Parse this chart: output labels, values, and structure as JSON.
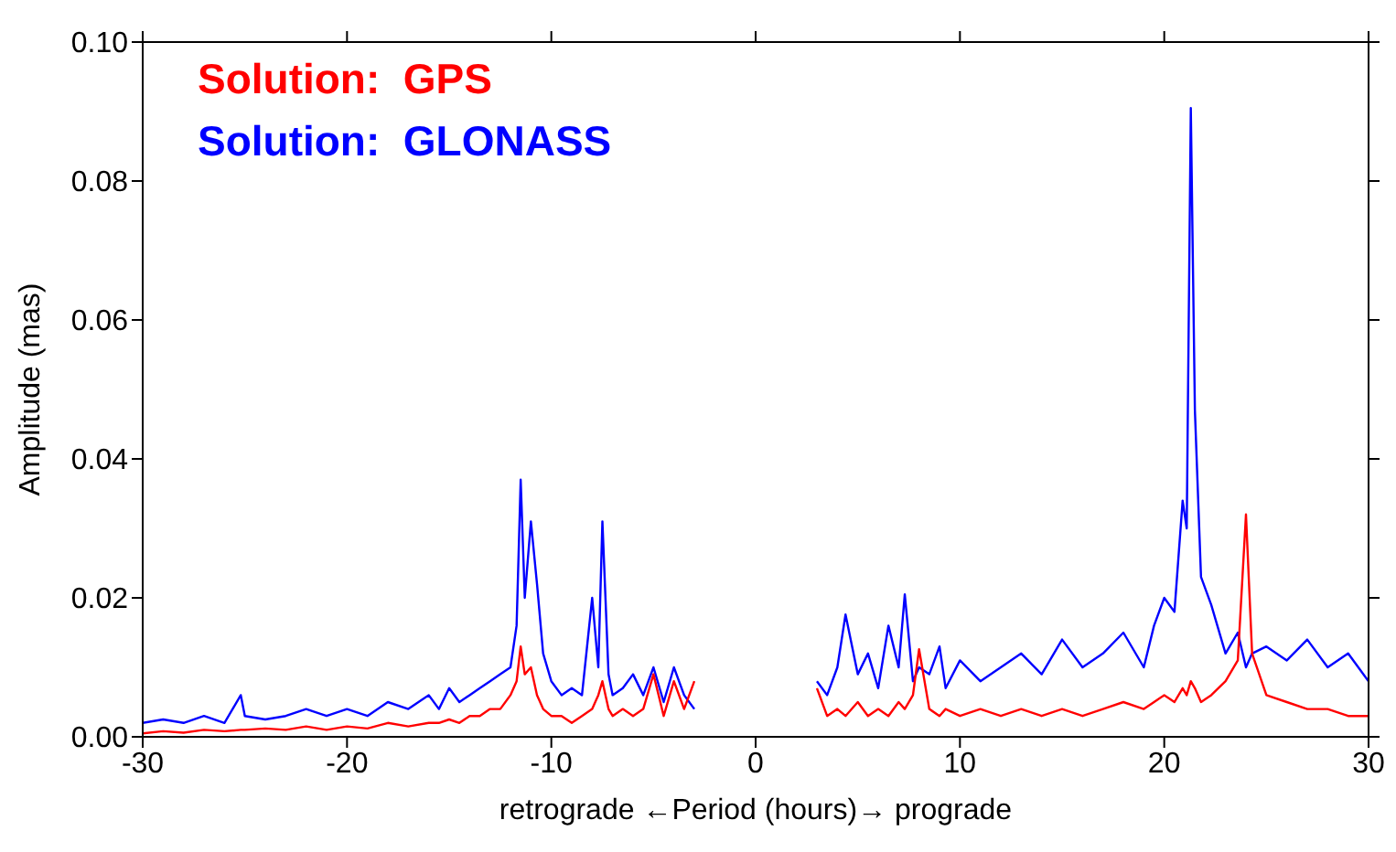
{
  "chart_data": {
    "type": "line",
    "xlabel": "retrograde ←Period (hours)→ prograde",
    "ylabel": "Amplitude (mas)",
    "x": [
      -30,
      -29,
      -28,
      -27,
      -26,
      -25.2,
      -25,
      -24,
      -23,
      -22,
      -21,
      -20,
      -19,
      -18,
      -17,
      -16,
      -15.5,
      -15,
      -14.5,
      -14,
      -13.5,
      -13,
      -12.5,
      -12,
      -11.7,
      -11.5,
      -11.3,
      -11,
      -10.7,
      -10.4,
      -10,
      -9.5,
      -9,
      -8.5,
      -8,
      -7.7,
      -7.5,
      -7.2,
      -7,
      -6.5,
      -6,
      -5.5,
      -5,
      -4.5,
      -4,
      -3.5,
      -3,
      0,
      3,
      3.5,
      4,
      4.4,
      5,
      5.5,
      6,
      6.5,
      7,
      7.3,
      7.7,
      8,
      8.5,
      9,
      9.3,
      10,
      11,
      12,
      13,
      14,
      15,
      16,
      17,
      18,
      19,
      19.5,
      20,
      20.5,
      20.9,
      21.1,
      21.3,
      21.5,
      21.8,
      22.3,
      23,
      23.6,
      24,
      24.3,
      25,
      26,
      27,
      28,
      29,
      30
    ],
    "series": [
      {
        "name": "Solution:  GPS",
        "color": "#ff0000",
        "values": [
          0.0005,
          0.0008,
          0.0006,
          0.001,
          0.0008,
          0.001,
          0.001,
          0.0012,
          0.001,
          0.0015,
          0.001,
          0.0015,
          0.0012,
          0.002,
          0.0015,
          0.002,
          0.002,
          0.0025,
          0.002,
          0.003,
          0.003,
          0.004,
          0.004,
          0.006,
          0.008,
          0.013,
          0.009,
          0.01,
          0.006,
          0.004,
          0.003,
          0.003,
          0.002,
          0.003,
          0.004,
          0.006,
          0.008,
          0.004,
          0.003,
          0.004,
          0.003,
          0.004,
          0.009,
          0.003,
          0.008,
          0.004,
          0.008,
          null,
          0.007,
          0.003,
          0.004,
          0.003,
          0.005,
          0.003,
          0.004,
          0.003,
          0.005,
          0.004,
          0.006,
          0.0126,
          0.004,
          0.003,
          0.004,
          0.003,
          0.004,
          0.003,
          0.004,
          0.003,
          0.004,
          0.003,
          0.004,
          0.005,
          0.004,
          0.005,
          0.006,
          0.005,
          0.007,
          0.006,
          0.008,
          0.007,
          0.005,
          0.006,
          0.008,
          0.011,
          0.032,
          0.012,
          0.006,
          0.005,
          0.004,
          0.004,
          0.003,
          0.003
        ]
      },
      {
        "name": "Solution:  GLONASS",
        "color": "#0000ff",
        "values": [
          0.002,
          0.0025,
          0.002,
          0.003,
          0.002,
          0.006,
          0.003,
          0.0025,
          0.003,
          0.004,
          0.003,
          0.004,
          0.003,
          0.005,
          0.004,
          0.006,
          0.004,
          0.007,
          0.005,
          0.006,
          0.007,
          0.008,
          0.009,
          0.01,
          0.016,
          0.037,
          0.02,
          0.031,
          0.022,
          0.012,
          0.008,
          0.006,
          0.007,
          0.006,
          0.02,
          0.01,
          0.031,
          0.009,
          0.006,
          0.007,
          0.009,
          0.006,
          0.01,
          0.005,
          0.01,
          0.006,
          0.004,
          null,
          0.008,
          0.006,
          0.01,
          0.0176,
          0.009,
          0.012,
          0.007,
          0.016,
          0.01,
          0.0205,
          0.008,
          0.01,
          0.009,
          0.013,
          0.007,
          0.011,
          0.008,
          0.01,
          0.012,
          0.009,
          0.014,
          0.01,
          0.012,
          0.015,
          0.01,
          0.016,
          0.02,
          0.018,
          0.034,
          0.03,
          0.0905,
          0.047,
          0.023,
          0.019,
          0.012,
          0.015,
          0.01,
          0.012,
          0.013,
          0.011,
          0.014,
          0.01,
          0.012,
          0.008
        ]
      }
    ],
    "xlim": [
      -30,
      30
    ],
    "xticks": [
      -30,
      -20,
      -10,
      0,
      10,
      20,
      30
    ],
    "ylim": [
      0,
      0.1
    ],
    "yticks": [
      {
        "value": 0,
        "label": "0.00"
      },
      {
        "value": 0.02,
        "label": "0.02"
      },
      {
        "value": 0.04,
        "label": "0.04"
      },
      {
        "value": 0.06,
        "label": "0.06"
      },
      {
        "value": 0.08,
        "label": "0.08"
      },
      {
        "value": 0.1,
        "label": "0.10"
      }
    ],
    "legend": "top left",
    "marker": "none",
    "line_style": "solid"
  }
}
